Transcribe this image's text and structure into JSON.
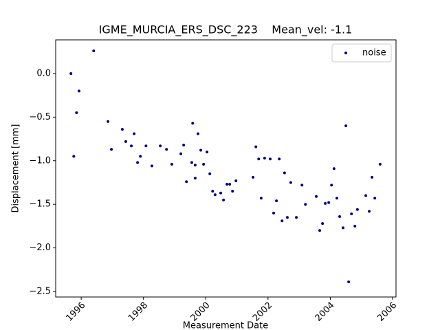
{
  "chart_data": {
    "type": "scatter",
    "title": "IGME_MURCIA_ERS_DSC_223    Mean_vel: -1.1",
    "x_label": "Measurement Date",
    "y_label": "Displacement [mm]",
    "legend_loc": "upper right",
    "series": [
      {
        "name": "noise",
        "color": "#000080",
        "x": [
          1995.67,
          1995.76,
          1995.85,
          1995.93,
          1996.4,
          1996.86,
          1996.97,
          1997.32,
          1997.43,
          1997.61,
          1997.7,
          1997.81,
          1997.9,
          1998.08,
          1998.27,
          1998.54,
          1998.74,
          1998.91,
          1999.2,
          1999.29,
          1999.38,
          1999.55,
          1999.58,
          1999.66,
          1999.66,
          1999.75,
          1999.84,
          1999.93,
          2000.04,
          2000.13,
          2000.22,
          2000.3,
          2000.48,
          2000.57,
          2000.68,
          2000.77,
          2000.86,
          2000.97,
          2001.52,
          2001.61,
          2001.7,
          2001.78,
          2001.89,
          2002.07,
          2002.18,
          2002.27,
          2002.36,
          2002.45,
          2002.53,
          2002.62,
          2002.73,
          2002.91,
          2003.09,
          2003.2,
          2003.55,
          2003.66,
          2003.75,
          2003.84,
          2003.95,
          2004.04,
          2004.12,
          2004.21,
          2004.3,
          2004.41,
          2004.5,
          2004.59,
          2004.68,
          2004.79,
          2004.87,
          2005.14,
          2005.25,
          2005.34,
          2005.43,
          2005.6
        ],
        "values": [
          0.0,
          -0.95,
          -0.45,
          -0.2,
          0.26,
          -0.55,
          -0.87,
          -0.64,
          -0.78,
          -0.83,
          -0.69,
          -1.02,
          -0.95,
          -0.83,
          -1.06,
          -0.83,
          -0.87,
          -1.04,
          -0.92,
          -0.82,
          -1.24,
          -1.02,
          -0.57,
          -1.05,
          -1.2,
          -0.69,
          -0.88,
          -1.04,
          -0.9,
          -1.15,
          -1.35,
          -1.39,
          -1.37,
          -1.45,
          -1.27,
          -1.27,
          -1.35,
          -1.23,
          -1.19,
          -0.84,
          -0.98,
          -1.43,
          -0.97,
          -0.98,
          -1.6,
          -1.46,
          -0.98,
          -1.69,
          -1.14,
          -1.65,
          -1.25,
          -1.65,
          -1.28,
          -1.5,
          -1.41,
          -1.8,
          -1.72,
          -1.49,
          -1.48,
          -1.28,
          -1.09,
          -1.43,
          -1.64,
          -1.77,
          -0.6,
          -2.39,
          -1.61,
          -1.75,
          -1.56,
          -1.4,
          -1.58,
          -1.19,
          -1.43,
          -1.04
        ]
      }
    ],
    "xlim": [
      1995.18,
      2006.11
    ],
    "xticks": [
      1996,
      1998,
      2000,
      2002,
      2004,
      2006
    ],
    "ylim": [
      -2.563,
      0.386
    ],
    "yticks": [
      {
        "value": -2.5,
        "label": "−2.5"
      },
      {
        "value": -2.0,
        "label": "−2.0"
      },
      {
        "value": -1.5,
        "label": "−1.5"
      },
      {
        "value": -1.0,
        "label": "−1.0"
      },
      {
        "value": -0.5,
        "label": "−0.5"
      },
      {
        "value": 0.0,
        "label": "0.0"
      }
    ],
    "grid": false
  }
}
